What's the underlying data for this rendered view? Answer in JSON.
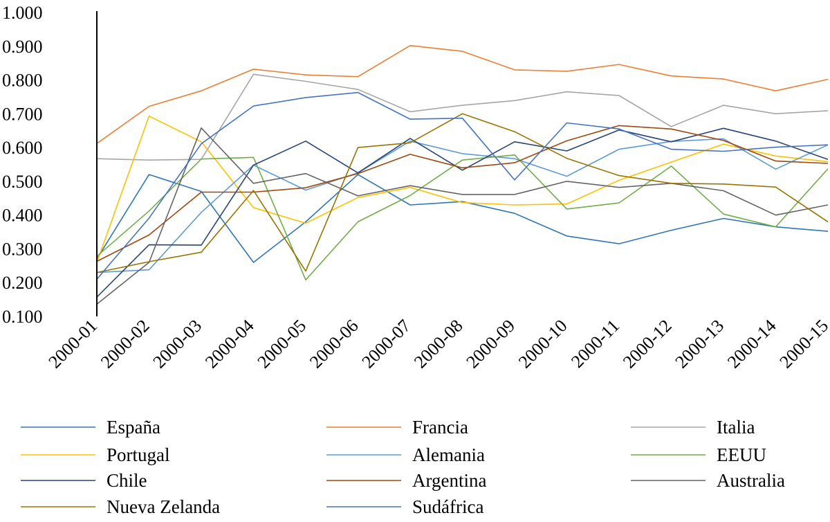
{
  "chart_data": {
    "type": "line",
    "title": "",
    "xlabel": "",
    "ylabel": "",
    "ylim": [
      0.1,
      1.0
    ],
    "yticks": [
      "1.000",
      "0.900",
      "0.800",
      "0.700",
      "0.600",
      "0.500",
      "0.400",
      "0.300",
      "0.200",
      "0.100"
    ],
    "yticks_values": [
      1.0,
      0.9,
      0.8,
      0.7,
      0.6,
      0.5,
      0.4,
      0.3,
      0.2,
      0.1
    ],
    "grid": false,
    "legend_position": "bottom",
    "categories": [
      "2000-01",
      "2000-02",
      "2000-03",
      "2000-04",
      "2000-05",
      "2000-06",
      "2000-07",
      "2000-08",
      "2000-09",
      "2000-10",
      "2000-11",
      "2000-12",
      "2000-13",
      "2000-14",
      "2000-15"
    ],
    "series": [
      {
        "name": "España",
        "color": "#2e75b6",
        "values": [
          0.27,
          0.52,
          0.47,
          0.26,
          0.38,
          0.52,
          0.43,
          0.44,
          0.405,
          0.338,
          0.315,
          0.355,
          0.39,
          0.365,
          0.352
        ]
      },
      {
        "name": "Francia",
        "color": "#ed7d31",
        "values": [
          0.612,
          0.722,
          0.768,
          0.832,
          0.815,
          0.81,
          0.902,
          0.885,
          0.83,
          0.826,
          0.846,
          0.812,
          0.803,
          0.768,
          0.802
        ]
      },
      {
        "name": "Italia",
        "color": "#a5a5a5",
        "values": [
          0.567,
          0.563,
          0.565,
          0.817,
          0.796,
          0.772,
          0.706,
          0.725,
          0.739,
          0.765,
          0.754,
          0.662,
          0.725,
          0.7,
          0.709
        ]
      },
      {
        "name": "Portugal",
        "color": "#ffc000",
        "values": [
          0.26,
          0.693,
          0.617,
          0.422,
          0.376,
          0.452,
          0.482,
          0.437,
          0.43,
          0.433,
          0.503,
          0.557,
          0.61,
          0.575,
          0.558
        ]
      },
      {
        "name": "Alemania",
        "color": "#5b9bd5",
        "values": [
          0.23,
          0.238,
          0.408,
          0.548,
          0.474,
          0.525,
          0.619,
          0.582,
          0.567,
          0.515,
          0.595,
          0.618,
          0.626,
          0.536,
          0.608
        ]
      },
      {
        "name": "EEUU",
        "color": "#70ad47",
        "values": [
          0.278,
          0.412,
          0.566,
          0.571,
          0.208,
          0.38,
          0.458,
          0.563,
          0.578,
          0.418,
          0.436,
          0.545,
          0.403,
          0.365,
          0.537
        ]
      },
      {
        "name": "Chile",
        "color": "#264478",
        "values": [
          0.157,
          0.312,
          0.311,
          0.548,
          0.619,
          0.525,
          0.627,
          0.533,
          0.617,
          0.59,
          0.652,
          0.617,
          0.657,
          0.619,
          0.565
        ]
      },
      {
        "name": "Argentina",
        "color": "#9e480e",
        "values": [
          0.263,
          0.341,
          0.468,
          0.468,
          0.481,
          0.523,
          0.58,
          0.54,
          0.555,
          0.62,
          0.665,
          0.655,
          0.621,
          0.56,
          0.553
        ]
      },
      {
        "name": "Australia",
        "color": "#636363",
        "values": [
          0.136,
          0.26,
          0.658,
          0.494,
          0.523,
          0.457,
          0.487,
          0.461,
          0.461,
          0.5,
          0.482,
          0.494,
          0.472,
          0.4,
          0.43
        ]
      },
      {
        "name": "Nueva Zelanda",
        "color": "#997300",
        "values": [
          0.23,
          0.262,
          0.29,
          0.473,
          0.234,
          0.6,
          0.614,
          0.7,
          0.647,
          0.568,
          0.517,
          0.494,
          0.492,
          0.483,
          0.38
        ]
      },
      {
        "name": "Sudáfrica",
        "color": "#4472c4",
        "values": [
          0.21,
          0.391,
          0.611,
          0.723,
          0.748,
          0.763,
          0.684,
          0.687,
          0.504,
          0.673,
          0.655,
          0.595,
          0.589,
          0.601,
          0.608
        ]
      }
    ]
  }
}
